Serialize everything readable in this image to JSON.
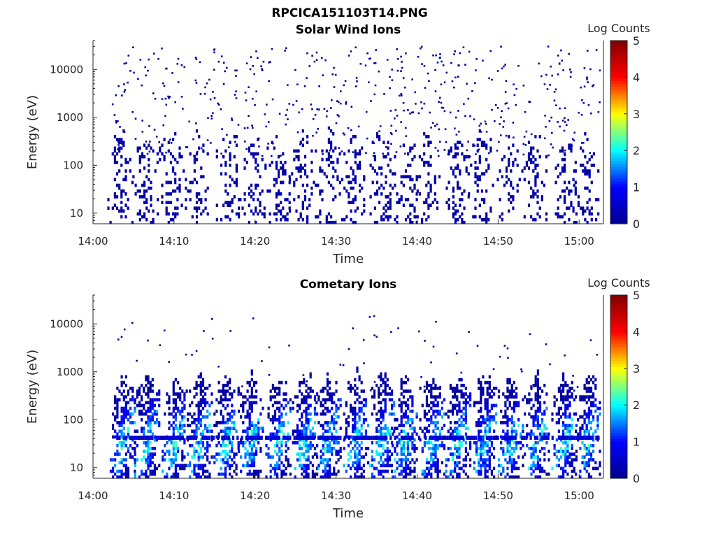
{
  "figure": {
    "title": "RPCICA151103T14.PNG"
  },
  "colormap": {
    "label": "Log Counts",
    "range": [
      0,
      5
    ],
    "ticks": [
      "0",
      "1",
      "2",
      "3",
      "4",
      "5"
    ],
    "stops": [
      "#00008f",
      "#0000ff",
      "#00ffff",
      "#ffff00",
      "#ff0000",
      "#800000"
    ]
  },
  "chart_data": [
    {
      "type": "heatmap",
      "title": "Solar Wind Ions",
      "xlabel": "Time",
      "ylabel": "Energy (eV)",
      "x_ticks": [
        "14:00",
        "14:10",
        "14:20",
        "14:30",
        "14:40",
        "14:50",
        "15:00"
      ],
      "x_range_min": [
        0,
        63
      ],
      "y_scale": "log",
      "y_ticks": [
        "10",
        "100",
        "1000",
        "10000"
      ],
      "y_range": [
        6,
        40000
      ],
      "grid": false,
      "scan_centers_min": [
        3.5,
        6.6,
        9.6,
        12.8,
        16.9,
        19.8,
        22.9,
        25.9,
        29.1,
        32.1,
        35.6,
        38.6,
        41.4,
        45.0,
        48.0,
        51.3,
        54.6,
        58.2,
        61.0
      ],
      "peak_log_counts": 0.5,
      "typical_energy_range_eV": [
        6,
        500
      ]
    },
    {
      "type": "heatmap",
      "title": "Cometary Ions",
      "xlabel": "Time",
      "ylabel": "Energy (eV)",
      "x_ticks": [
        "14:00",
        "14:10",
        "14:20",
        "14:30",
        "14:40",
        "14:50",
        "15:00"
      ],
      "x_range_min": [
        0,
        63
      ],
      "y_scale": "log",
      "y_ticks": [
        "10",
        "100",
        "1000",
        "10000"
      ],
      "y_range": [
        6,
        40000
      ],
      "grid": false,
      "scan_centers_min": [
        3.8,
        6.8,
        10.2,
        13.3,
        16.6,
        19.6,
        23.0,
        26.3,
        29.2,
        32.6,
        35.8,
        38.6,
        42.0,
        45.2,
        48.4,
        51.7,
        54.9,
        58.3,
        61.2
      ],
      "peak_log_counts": 2.2,
      "typical_energy_range_eV": [
        6,
        900
      ],
      "band_energy_eV": 42
    }
  ]
}
